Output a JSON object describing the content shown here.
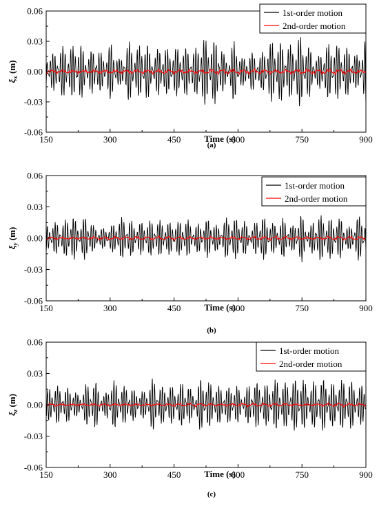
{
  "chart_data": [
    {
      "panel_label": "(a)",
      "type": "line",
      "ylabel": "ξx (m)",
      "ylabel_symbol": "ξ",
      "ylabel_sub": "x",
      "ylabel_unit": " (m)",
      "xlabel": "Time (s)",
      "xlim": [
        150,
        900
      ],
      "ylim": [
        -0.06,
        0.06
      ],
      "xticks": [
        "150",
        "300",
        "450",
        "600",
        "750",
        "900"
      ],
      "yticks": [
        "0.06",
        "0.03",
        "0.00",
        "-0.03",
        "-0.06"
      ],
      "legend_placement": "top-right",
      "series": [
        {
          "name": "1st-order motion",
          "color": "#000000",
          "amplitude": 0.03,
          "peak": 0.049,
          "period_s": 6
        },
        {
          "name": "2nd-order motion",
          "color": "#ff0000",
          "amplitude": 0.003,
          "peak": 0.006,
          "period_s": 25
        }
      ]
    },
    {
      "panel_label": "(b)",
      "type": "line",
      "ylabel": "ξy (m)",
      "ylabel_symbol": "ξ",
      "ylabel_sub": "y",
      "ylabel_unit": " (m)",
      "xlabel": "Time (s)",
      "xlim": [
        150,
        900
      ],
      "ylim": [
        -0.06,
        0.06
      ],
      "xticks": [
        "150",
        "300",
        "450",
        "600",
        "750",
        "900"
      ],
      "yticks": [
        "0.06",
        "0.03",
        "0.00",
        "-0.03",
        "-0.06"
      ],
      "legend_placement": "top-right",
      "series": [
        {
          "name": "1st-order motion",
          "color": "#000000",
          "amplitude": 0.02,
          "peak": 0.033,
          "period_s": 6
        },
        {
          "name": "2nd-order motion",
          "color": "#ff0000",
          "amplitude": 0.002,
          "peak": 0.005,
          "period_s": 25
        }
      ]
    },
    {
      "panel_label": "(c)",
      "type": "line",
      "ylabel": "ξz (m)",
      "ylabel_symbol": "ξ",
      "ylabel_sub": "z",
      "ylabel_unit": " (m)",
      "xlabel": "Time (s)",
      "xlim": [
        150,
        900
      ],
      "ylim": [
        -0.06,
        0.06
      ],
      "xticks": [
        "150",
        "300",
        "450",
        "600",
        "750",
        "900"
      ],
      "yticks": [
        "0.06",
        "0.03",
        "0.00",
        "-0.03",
        "-0.06"
      ],
      "legend_placement": "top-right",
      "series": [
        {
          "name": "1st-order motion",
          "color": "#000000",
          "amplitude": 0.022,
          "peak": 0.039,
          "period_s": 6
        },
        {
          "name": "2nd-order motion",
          "color": "#ff0000",
          "amplitude": 0.002,
          "peak": 0.006,
          "period_s": 25
        }
      ]
    }
  ]
}
